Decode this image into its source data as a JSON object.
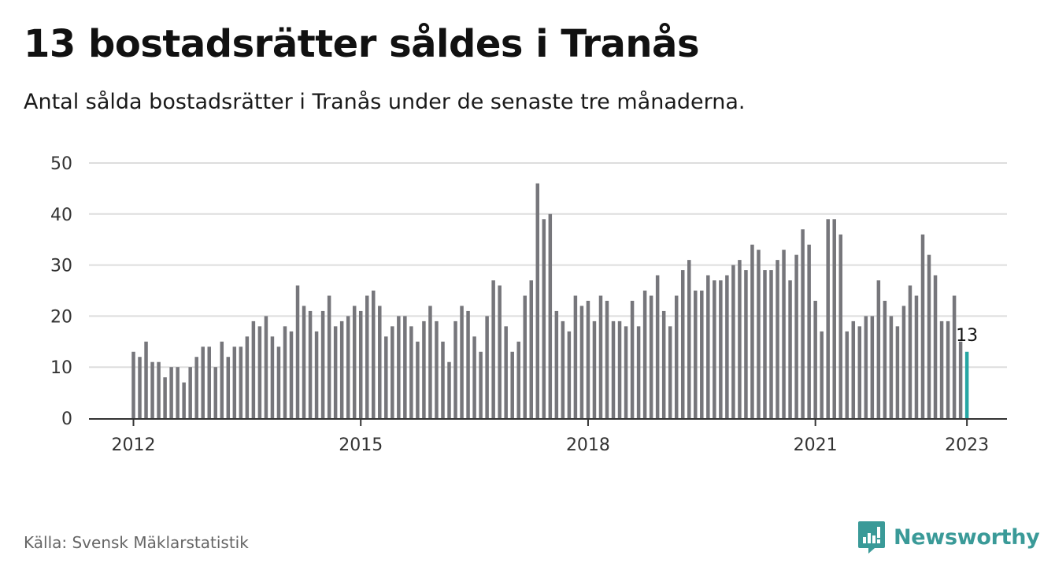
{
  "header": {
    "title": "13 bostadsrätter såldes i Tranås",
    "subtitle": "Antal sålda bostadsrätter i Tranås under de senaste tre månaderna."
  },
  "footer": {
    "source": "Källa: Svensk Mäklarstatistik",
    "brand": "Newsworthy",
    "brand_icon": "newsworthy-logo-icon"
  },
  "colors": {
    "bar": "#76767b",
    "highlight": "#26a6a3",
    "grid": "#dddddd",
    "axis": "#333333",
    "brand": "#3a9a98"
  },
  "chart_data": {
    "type": "bar",
    "title": "13 bostadsrätter såldes i Tranås",
    "subtitle": "Antal sålda bostadsrätter i Tranås under de senaste tre månaderna.",
    "xlabel": "",
    "ylabel": "",
    "ylim": [
      0,
      50
    ],
    "yticks": [
      0,
      10,
      20,
      30,
      40,
      50
    ],
    "grid": true,
    "x_start": "2012-01",
    "x_tick_labels": [
      "2012",
      "2015",
      "2018",
      "2021",
      "2023"
    ],
    "x_tick_months": [
      "2012-01",
      "2015-01",
      "2018-01",
      "2021-01",
      "2023-01"
    ],
    "highlight_label": "13",
    "values": [
      13,
      12,
      15,
      11,
      11,
      8,
      10,
      10,
      7,
      10,
      12,
      14,
      14,
      10,
      15,
      12,
      14,
      14,
      16,
      19,
      18,
      20,
      16,
      14,
      18,
      17,
      26,
      22,
      21,
      17,
      21,
      24,
      18,
      19,
      20,
      22,
      21,
      24,
      25,
      22,
      16,
      18,
      20,
      20,
      18,
      15,
      19,
      22,
      19,
      15,
      11,
      19,
      22,
      21,
      16,
      13,
      20,
      27,
      26,
      18,
      13,
      15,
      24,
      27,
      46,
      39,
      40,
      21,
      19,
      17,
      24,
      22,
      23,
      19,
      24,
      23,
      19,
      19,
      18,
      23,
      18,
      25,
      24,
      28,
      21,
      18,
      24,
      29,
      31,
      25,
      25,
      28,
      27,
      27,
      28,
      30,
      31,
      29,
      34,
      33,
      29,
      29,
      31,
      33,
      27,
      32,
      37,
      34,
      23,
      17,
      39,
      39,
      36,
      17,
      19,
      18,
      20,
      20,
      27,
      23,
      20,
      18,
      22,
      26,
      24,
      36,
      32,
      28,
      19,
      19,
      24,
      15,
      13
    ]
  }
}
